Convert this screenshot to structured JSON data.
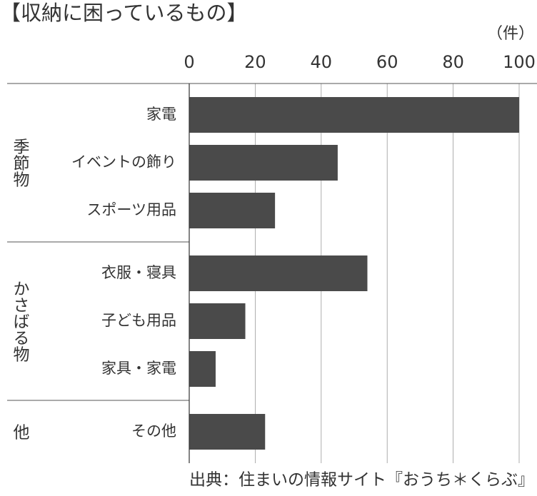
{
  "chart_data": {
    "type": "bar",
    "orientation": "horizontal",
    "title": "【収納に困っているもの】",
    "unit": "（件）",
    "source": "出典：住まいの情報サイト『おうち＊くらぶ』",
    "groups": [
      {
        "name": "季節物",
        "categories": [
          "家電",
          "イベントの飾り",
          "スポーツ用品"
        ],
        "values": [
          100,
          45,
          26
        ]
      },
      {
        "name": "かさばる物",
        "categories": [
          "衣服・寝具",
          "子ども用品",
          "家具・家電"
        ],
        "values": [
          54,
          17,
          8
        ]
      },
      {
        "name": "他",
        "categories": [
          "その他"
        ],
        "values": [
          23
        ]
      }
    ],
    "color": "#4a4a4a",
    "xlim": [
      0,
      100
    ],
    "xticks": [
      0,
      20,
      40,
      60,
      80,
      100
    ],
    "grid": true
  }
}
